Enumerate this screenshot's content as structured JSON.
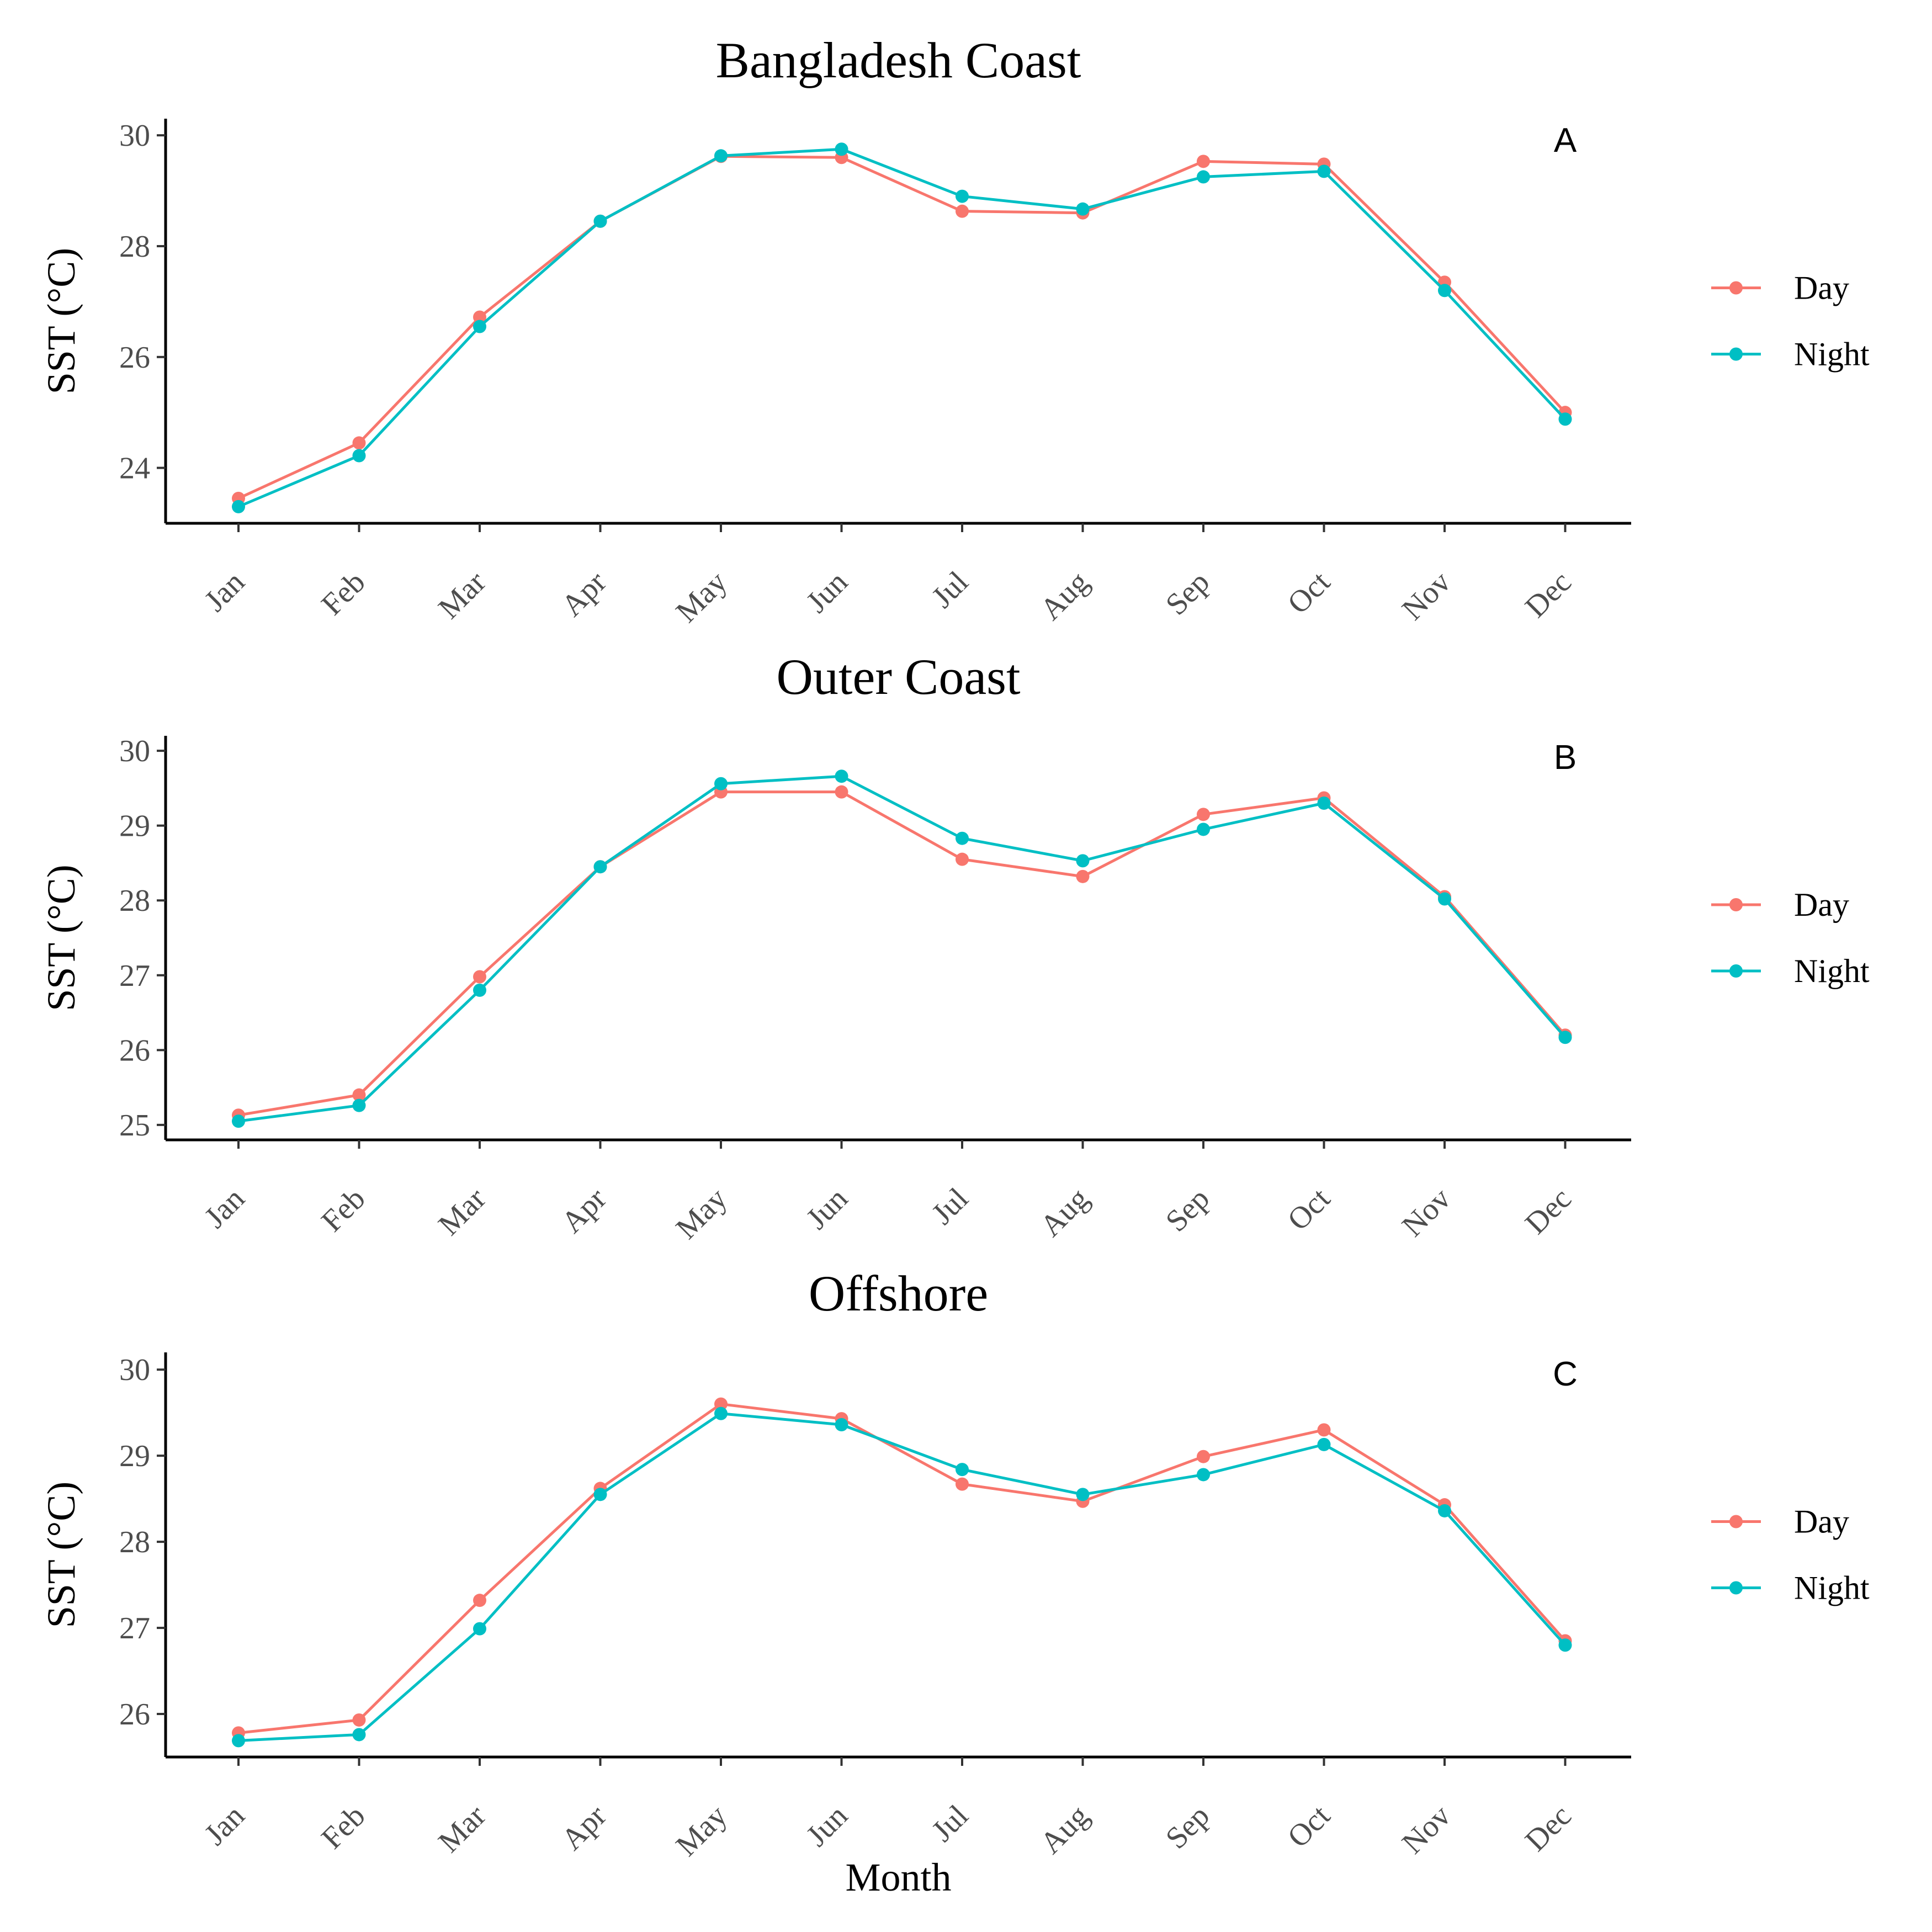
{
  "colors": {
    "day": "#F8766D",
    "night": "#00BFC4"
  },
  "x_axis_title": "Month",
  "chart_data": [
    {
      "type": "line",
      "title": "Bangladesh Coast",
      "tag": "A",
      "ylabel": "SST (°C)",
      "xlabel": "",
      "ylim": [
        23,
        30.3
      ],
      "yticks": [
        24,
        26,
        28,
        30
      ],
      "categories": [
        "Jan",
        "Feb",
        "Mar",
        "Apr",
        "May",
        "Jun",
        "Jul",
        "Aug",
        "Sep",
        "Oct",
        "Nov",
        "Dec"
      ],
      "series": [
        {
          "name": "Day",
          "values": [
            23.45,
            24.45,
            26.72,
            28.45,
            29.62,
            29.6,
            28.63,
            28.6,
            29.53,
            29.48,
            27.35,
            25.0
          ]
        },
        {
          "name": "Night",
          "values": [
            23.3,
            24.22,
            26.55,
            28.45,
            29.63,
            29.75,
            28.9,
            28.67,
            29.25,
            29.35,
            27.2,
            24.88
          ]
        }
      ],
      "legend_position": "right"
    },
    {
      "type": "line",
      "title": "Outer Coast",
      "tag": "B",
      "ylabel": "SST (°C)",
      "xlabel": "",
      "ylim": [
        24.8,
        30.2
      ],
      "yticks": [
        25,
        26,
        27,
        28,
        29,
        30
      ],
      "categories": [
        "Jan",
        "Feb",
        "Mar",
        "Apr",
        "May",
        "Jun",
        "Jul",
        "Aug",
        "Sep",
        "Oct",
        "Nov",
        "Dec"
      ],
      "series": [
        {
          "name": "Day",
          "values": [
            25.13,
            25.4,
            26.98,
            28.45,
            29.45,
            29.45,
            28.55,
            28.32,
            29.15,
            29.37,
            28.05,
            26.2
          ]
        },
        {
          "name": "Night",
          "values": [
            25.05,
            25.26,
            26.8,
            28.45,
            29.56,
            29.66,
            28.83,
            28.53,
            28.95,
            29.3,
            28.02,
            26.17
          ]
        }
      ],
      "legend_position": "right"
    },
    {
      "type": "line",
      "title": "Offshore",
      "tag": "C",
      "ylabel": "SST (°C)",
      "xlabel": "Month",
      "ylim": [
        25.5,
        30.2
      ],
      "yticks": [
        26,
        27,
        28,
        29,
        30
      ],
      "categories": [
        "Jan",
        "Feb",
        "Mar",
        "Apr",
        "May",
        "Jun",
        "Jul",
        "Aug",
        "Sep",
        "Oct",
        "Nov",
        "Dec"
      ],
      "series": [
        {
          "name": "Day",
          "values": [
            25.78,
            25.93,
            27.32,
            28.62,
            29.6,
            29.43,
            28.67,
            28.47,
            28.99,
            29.3,
            28.43,
            26.85
          ]
        },
        {
          "name": "Night",
          "values": [
            25.69,
            25.76,
            26.99,
            28.55,
            29.49,
            29.36,
            28.84,
            28.55,
            28.78,
            29.13,
            28.36,
            26.8
          ]
        }
      ],
      "legend_position": "right"
    }
  ]
}
